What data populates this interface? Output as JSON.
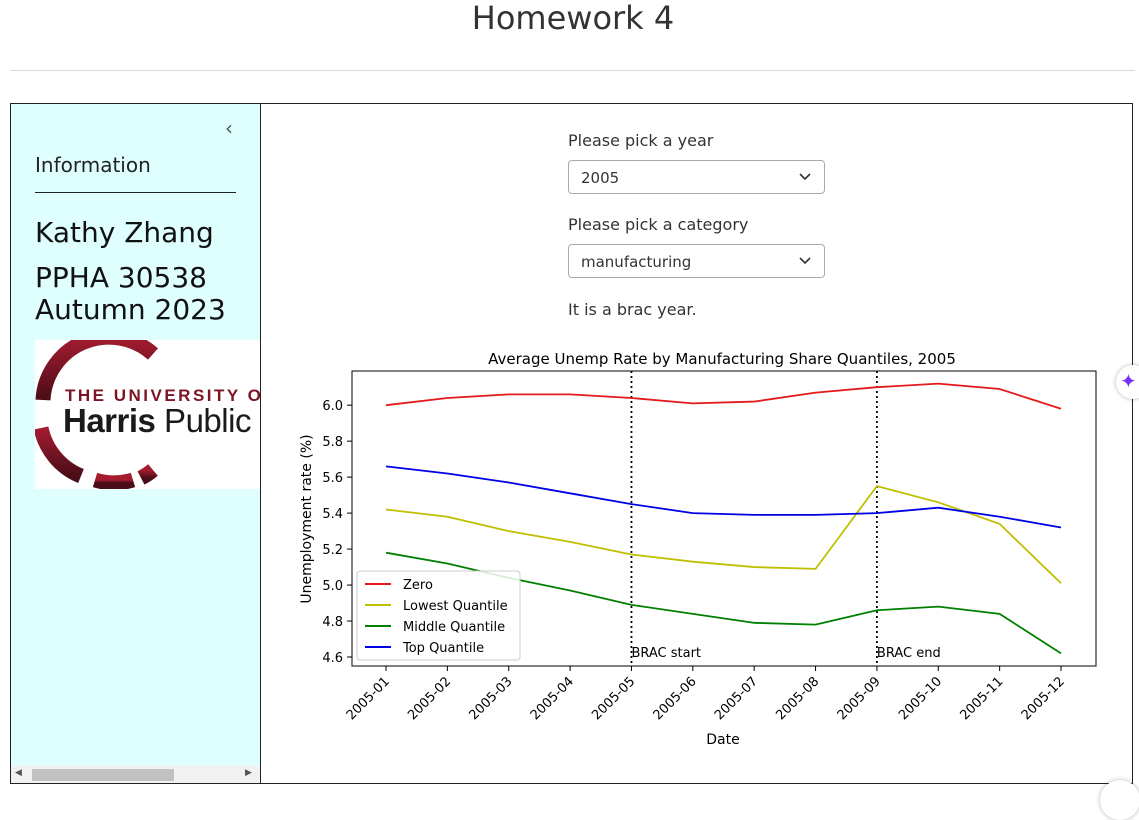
{
  "page": {
    "title": "Homework 4"
  },
  "sidebar": {
    "collapse_icon": "chevron-left-icon",
    "heading": "Information",
    "author": "Kathy Zhang",
    "course_line1": "PPHA 30538",
    "course_line2": "Autumn 2023",
    "logo": {
      "line1": "THE UNIVERSITY O",
      "line2_bold": "Harris",
      "line2_rest": " Public"
    }
  },
  "controls": {
    "year_label": "Please pick a year",
    "year_value": "2005",
    "category_label": "Please pick a category",
    "category_value": "manufacturing",
    "status_text": "It is a brac year."
  },
  "chart_data": {
    "type": "line",
    "title": "Average Unemp Rate by Manufacturing Share Quantiles, 2005",
    "xlabel": "Date",
    "ylabel": "Unemployment rate (%)",
    "categories": [
      "2005-01",
      "2005-02",
      "2005-03",
      "2005-04",
      "2005-05",
      "2005-06",
      "2005-07",
      "2005-08",
      "2005-09",
      "2005-10",
      "2005-11",
      "2005-12"
    ],
    "ylim": [
      4.55,
      6.19
    ],
    "yticks": [
      4.6,
      4.8,
      5.0,
      5.2,
      5.4,
      5.6,
      5.8,
      6.0
    ],
    "legend_position": "lower-left",
    "grid": false,
    "series": [
      {
        "name": "Zero",
        "color": "#e41a1a",
        "values": [
          6.0,
          6.04,
          6.06,
          6.06,
          6.04,
          6.01,
          6.02,
          6.07,
          6.1,
          6.12,
          6.09,
          5.98
        ]
      },
      {
        "name": "Lowest Quantile",
        "color": "#bfbf00",
        "values": [
          5.42,
          5.38,
          5.3,
          5.24,
          5.17,
          5.13,
          5.1,
          5.09,
          5.55,
          5.46,
          5.34,
          5.01
        ]
      },
      {
        "name": "Middle Quantile",
        "color": "#008000",
        "values": [
          5.18,
          5.12,
          5.04,
          4.97,
          4.89,
          4.84,
          4.79,
          4.78,
          4.86,
          4.88,
          4.84,
          4.62
        ]
      },
      {
        "name": "Top Quantile",
        "color": "#0000e6",
        "values": [
          5.66,
          5.62,
          5.57,
          5.51,
          5.45,
          5.4,
          5.39,
          5.39,
          5.4,
          5.43,
          5.38,
          5.32
        ]
      }
    ],
    "annotations": [
      {
        "x": "2005-05",
        "label": "BRAC start"
      },
      {
        "x": "2005-09",
        "label": "BRAC end"
      }
    ]
  }
}
